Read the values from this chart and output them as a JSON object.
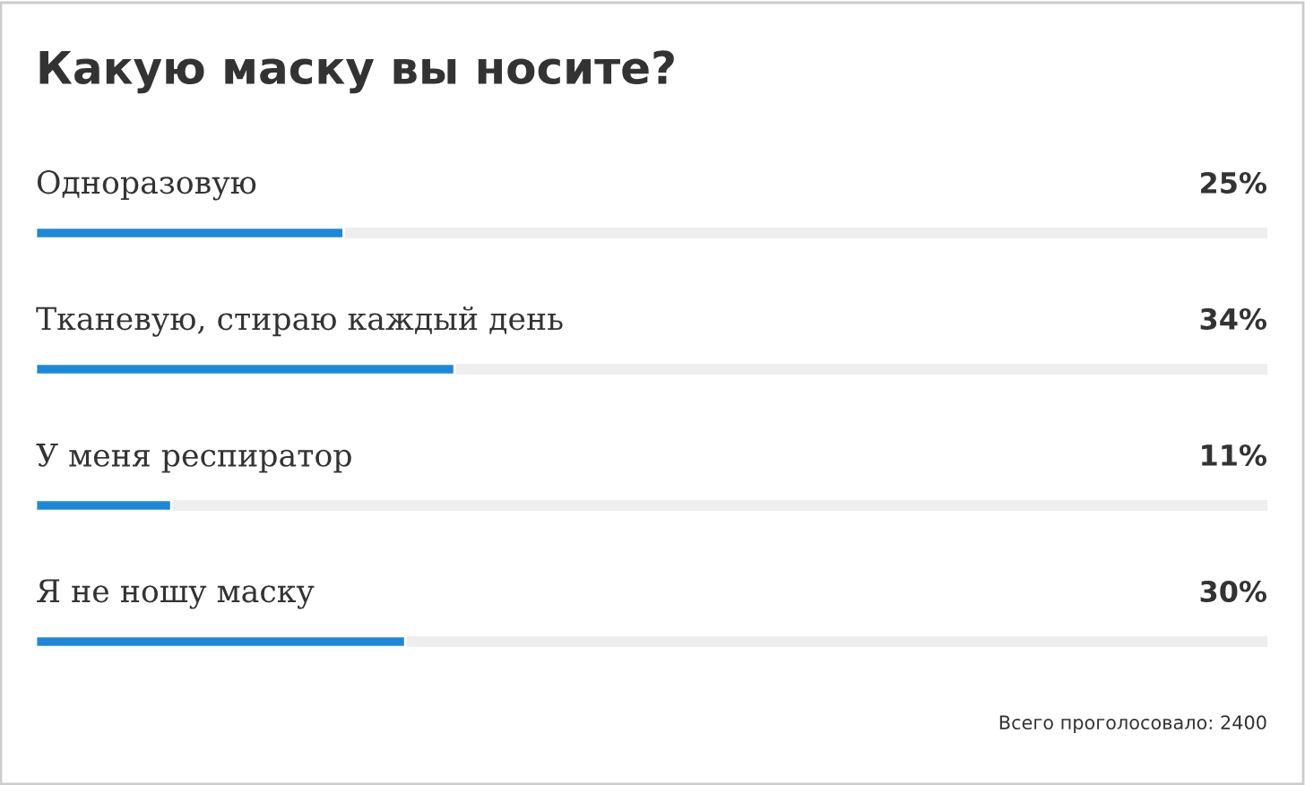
{
  "chart_data": {
    "type": "bar",
    "orientation": "horizontal",
    "title": "Какую маску вы носите?",
    "categories": [
      "Одноразовую",
      "Тканевую, стираю каждый день",
      "У меня респиратор",
      "Я не ношу маску"
    ],
    "values": [
      25,
      34,
      11,
      30
    ],
    "value_labels": [
      "25%",
      "34%",
      "11%",
      "30%"
    ],
    "color": "#1e88d8",
    "xlim": [
      0,
      100
    ],
    "tick_labels": false,
    "annotations": [
      "Всего проголосовало: 2400"
    ]
  }
}
